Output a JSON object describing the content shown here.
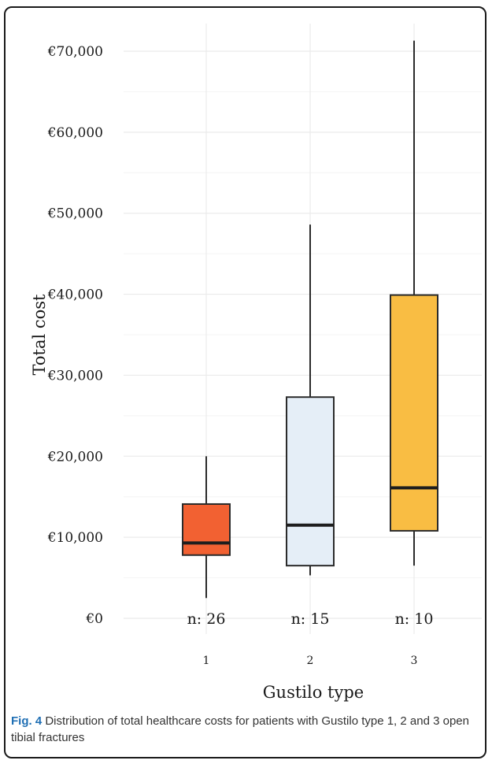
{
  "chart_data": {
    "type": "boxplot",
    "title": "",
    "xlabel": "Gustilo type",
    "ylabel": "Total cost",
    "ylim": [
      0,
      72000
    ],
    "yticks": [
      0,
      10000,
      20000,
      30000,
      40000,
      50000,
      60000,
      70000
    ],
    "ytick_labels": [
      "€0",
      "€10,000",
      "€20,000",
      "€30,000",
      "€40,000",
      "€50,000",
      "€60,000",
      "€70,000"
    ],
    "grid": true,
    "categories": [
      "1",
      "2",
      "3"
    ],
    "boxes": [
      {
        "category": "1",
        "min": 2500,
        "q1": 7800,
        "median": 9300,
        "q3": 14100,
        "max": 20000,
        "n_label": "n: 26",
        "color": "#f26132"
      },
      {
        "category": "2",
        "min": 5300,
        "q1": 6500,
        "median": 11500,
        "q3": 27300,
        "max": 48600,
        "n_label": "n: 15",
        "color": "#e5eef7"
      },
      {
        "category": "3",
        "min": 6500,
        "q1": 10800,
        "median": 16100,
        "q3": 39900,
        "max": 71300,
        "n_label": "n: 10",
        "color": "#f9bd43"
      }
    ]
  },
  "caption": {
    "label": "Fig. 4",
    "text": " Distribution of total healthcare costs for patients with Gustilo type 1, 2 and 3 open tibial fractures"
  }
}
